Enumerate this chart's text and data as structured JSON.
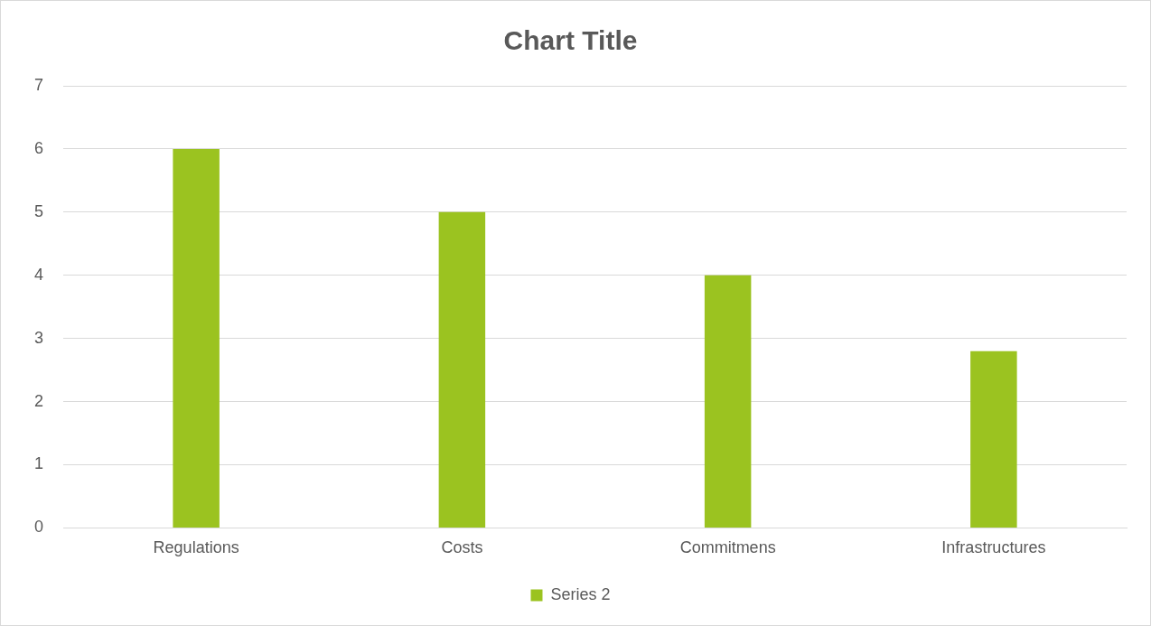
{
  "chart_data": {
    "type": "bar",
    "title": "Chart Title",
    "categories": [
      "Regulations",
      "Costs",
      "Commitmens",
      "Infrastructures"
    ],
    "series": [
      {
        "name": "Series 2",
        "color": "#9bc320",
        "values": [
          6,
          5,
          4,
          2.8
        ]
      }
    ],
    "ylim": [
      0,
      7
    ],
    "yticks": [
      0,
      1,
      2,
      3,
      4,
      5,
      6,
      7
    ],
    "grid": "y",
    "legend": "bottom"
  }
}
